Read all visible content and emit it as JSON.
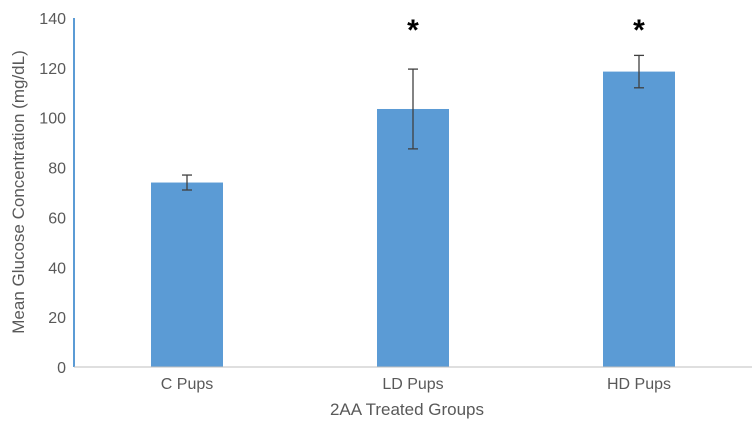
{
  "chart_data": {
    "type": "bar",
    "title": "",
    "xlabel": "2AA Treated Groups",
    "ylabel": "Mean Glucose Concentration (mg/dL)",
    "categories": [
      "C Pups",
      "LD Pups",
      "HD Pups"
    ],
    "series": [
      {
        "values": [
          74,
          103.5,
          118.5
        ],
        "error": [
          3,
          16,
          6.5
        ],
        "color": "#5b9bd5"
      }
    ],
    "annotations": [
      "",
      "*",
      "*"
    ],
    "ylim": [
      0,
      140
    ],
    "yticks": [
      "0",
      "20",
      "40",
      "60",
      "80",
      "100",
      "120",
      "140"
    ],
    "grid": false,
    "legend": "none"
  }
}
